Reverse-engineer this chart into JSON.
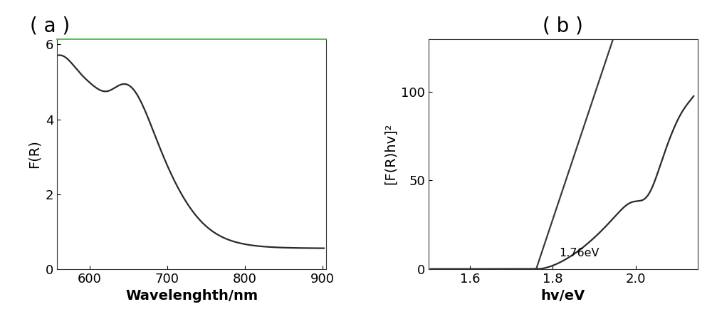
{
  "panel_a_label": "( a )",
  "panel_b_label": "( b )",
  "panel_a_xlabel": "Wavelenghth/nm",
  "panel_a_ylabel": "F(R)",
  "panel_b_xlabel": "hv/eV",
  "panel_b_ylabel": "[F(R)hv]²",
  "panel_a_xlim": [
    558,
    905
  ],
  "panel_a_ylim": [
    0,
    6.15
  ],
  "panel_a_xticks": [
    600,
    700,
    800,
    900
  ],
  "panel_a_yticks": [
    0,
    2,
    4,
    6
  ],
  "panel_b_xlim": [
    1.5,
    2.15
  ],
  "panel_b_ylim": [
    0,
    130
  ],
  "panel_b_xticks": [
    1.6,
    1.8,
    2.0
  ],
  "panel_b_yticks": [
    0,
    50,
    100
  ],
  "bandgap_label": "1.76eV",
  "line_color": "#2a2a2a",
  "tangent_color": "#3a3a3a",
  "background_color": "#ffffff",
  "border_color": "#4aaa44",
  "label_fontsize": 14,
  "tick_fontsize": 13,
  "panel_label_fontsize": 20,
  "line_width": 1.6
}
